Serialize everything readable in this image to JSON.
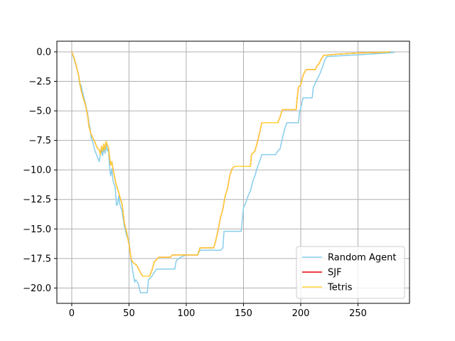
{
  "chart_data": {
    "type": "line",
    "title": "",
    "xlabel": "",
    "ylabel": "",
    "xlim": [
      -13,
      295
    ],
    "ylim": [
      -21.3,
      0.9
    ],
    "grid": true,
    "legend_position": "lower right",
    "x_ticks": [
      0,
      50,
      100,
      150,
      200,
      250
    ],
    "x_tick_labels": [
      "0",
      "50",
      "100",
      "150",
      "200",
      "250"
    ],
    "y_ticks": [
      0.0,
      -2.5,
      -5.0,
      -7.5,
      -10.0,
      -12.5,
      -15.0,
      -17.5,
      -20.0
    ],
    "y_tick_labels": [
      "0.0",
      "−2.5",
      "−5.0",
      "−7.5",
      "−10.0",
      "−12.5",
      "−15.0",
      "−17.5",
      "−20.0"
    ],
    "series": [
      {
        "name": "Random Agent",
        "color": "#87ceeb",
        "points": [
          [
            0,
            0
          ],
          [
            2,
            -0.6
          ],
          [
            4,
            -1.3
          ],
          [
            6,
            -2.0
          ],
          [
            7,
            -2.8
          ],
          [
            8,
            -2.8
          ],
          [
            10,
            -3.6
          ],
          [
            12,
            -4.4
          ],
          [
            14,
            -5.3
          ],
          [
            15,
            -6.0
          ],
          [
            16,
            -6.5
          ],
          [
            17,
            -7.3
          ],
          [
            18,
            -7.5
          ],
          [
            20,
            -8.3
          ],
          [
            22,
            -8.8
          ],
          [
            24,
            -9.3
          ],
          [
            25,
            -8.7
          ],
          [
            26,
            -8.3
          ],
          [
            27,
            -8.8
          ],
          [
            28,
            -8.0
          ],
          [
            29,
            -8.6
          ],
          [
            30,
            -7.9
          ],
          [
            31,
            -8.4
          ],
          [
            32,
            -8.2
          ],
          [
            33,
            -9.8
          ],
          [
            34,
            -10.5
          ],
          [
            35,
            -9.9
          ],
          [
            36,
            -10.9
          ],
          [
            38,
            -11.5
          ],
          [
            39,
            -13.0
          ],
          [
            40,
            -12.9
          ],
          [
            41,
            -12.2
          ],
          [
            42,
            -12.9
          ],
          [
            44,
            -13.5
          ],
          [
            46,
            -14.8
          ],
          [
            48,
            -15.6
          ],
          [
            50,
            -16.0
          ],
          [
            52,
            -17.8
          ],
          [
            54,
            -19.0
          ],
          [
            55,
            -19.5
          ],
          [
            56,
            -19.3
          ],
          [
            58,
            -19.6
          ],
          [
            60,
            -20.4
          ],
          [
            62,
            -20.4
          ],
          [
            66,
            -20.4
          ],
          [
            67,
            -19.3
          ],
          [
            70,
            -19.0
          ],
          [
            72,
            -18.7
          ],
          [
            74,
            -18.4
          ],
          [
            90,
            -18.4
          ],
          [
            91,
            -17.8
          ],
          [
            92,
            -17.6
          ],
          [
            95,
            -17.4
          ],
          [
            100,
            -17.2
          ],
          [
            110,
            -17.2
          ],
          [
            112,
            -16.8
          ],
          [
            130,
            -16.8
          ],
          [
            132,
            -16.6
          ],
          [
            133,
            -15.2
          ],
          [
            148,
            -15.2
          ],
          [
            149,
            -14.2
          ],
          [
            150,
            -13.2
          ],
          [
            152,
            -12.8
          ],
          [
            154,
            -12.2
          ],
          [
            156,
            -11.8
          ],
          [
            158,
            -11.0
          ],
          [
            160,
            -10.5
          ],
          [
            162,
            -9.8
          ],
          [
            164,
            -9.3
          ],
          [
            166,
            -8.7
          ],
          [
            168,
            -8.7
          ],
          [
            178,
            -8.7
          ],
          [
            180,
            -8.4
          ],
          [
            182,
            -8.2
          ],
          [
            184,
            -7.3
          ],
          [
            186,
            -6.5
          ],
          [
            188,
            -6.0
          ],
          [
            198,
            -6.0
          ],
          [
            199,
            -5.0
          ],
          [
            200,
            -4.8
          ],
          [
            202,
            -3.9
          ],
          [
            210,
            -3.9
          ],
          [
            211,
            -3.0
          ],
          [
            213,
            -2.6
          ],
          [
            215,
            -2.2
          ],
          [
            217,
            -1.8
          ],
          [
            219,
            -1.3
          ],
          [
            221,
            -0.7
          ],
          [
            223,
            -0.4
          ],
          [
            240,
            -0.3
          ],
          [
            260,
            -0.2
          ],
          [
            275,
            -0.1
          ],
          [
            282,
            -0.05
          ]
        ]
      },
      {
        "name": "SJF",
        "color": "#e8000b",
        "points": [
          [
            0,
            0
          ],
          [
            2,
            -0.5
          ],
          [
            4,
            -1.2
          ],
          [
            6,
            -2.0
          ],
          [
            8,
            -3.2
          ],
          [
            10,
            -3.9
          ],
          [
            12,
            -4.5
          ],
          [
            14,
            -5.5
          ],
          [
            15,
            -6.3
          ],
          [
            16,
            -6.7
          ],
          [
            17,
            -7.0
          ],
          [
            18,
            -7.2
          ],
          [
            20,
            -7.6
          ],
          [
            22,
            -8.1
          ],
          [
            24,
            -8.3
          ],
          [
            25,
            -8.7
          ],
          [
            26,
            -8.0
          ],
          [
            27,
            -8.4
          ],
          [
            28,
            -7.8
          ],
          [
            29,
            -8.3
          ],
          [
            30,
            -7.6
          ],
          [
            31,
            -7.9
          ],
          [
            32,
            -8.1
          ],
          [
            33,
            -8.9
          ],
          [
            34,
            -9.6
          ],
          [
            35,
            -9.3
          ],
          [
            36,
            -9.9
          ],
          [
            38,
            -10.9
          ],
          [
            39,
            -11.3
          ],
          [
            40,
            -11.6
          ],
          [
            41,
            -11.9
          ],
          [
            42,
            -12.3
          ],
          [
            44,
            -12.9
          ],
          [
            46,
            -14.5
          ],
          [
            48,
            -15.3
          ],
          [
            50,
            -16.3
          ],
          [
            52,
            -17.6
          ],
          [
            54,
            -17.9
          ],
          [
            56,
            -18.0
          ],
          [
            58,
            -18.3
          ],
          [
            60,
            -18.7
          ],
          [
            62,
            -19.0
          ],
          [
            68,
            -19.0
          ],
          [
            70,
            -18.5
          ],
          [
            72,
            -17.8
          ],
          [
            74,
            -17.6
          ],
          [
            76,
            -17.4
          ],
          [
            86,
            -17.4
          ],
          [
            88,
            -17.2
          ],
          [
            110,
            -17.2
          ],
          [
            112,
            -16.6
          ],
          [
            124,
            -16.6
          ],
          [
            126,
            -15.9
          ],
          [
            128,
            -15.0
          ],
          [
            130,
            -14.0
          ],
          [
            132,
            -13.3
          ],
          [
            134,
            -12.2
          ],
          [
            136,
            -11.6
          ],
          [
            138,
            -10.5
          ],
          [
            140,
            -9.9
          ],
          [
            142,
            -9.7
          ],
          [
            156,
            -9.7
          ],
          [
            157,
            -8.7
          ],
          [
            160,
            -8.4
          ],
          [
            162,
            -7.7
          ],
          [
            164,
            -6.9
          ],
          [
            166,
            -6.0
          ],
          [
            180,
            -6.0
          ],
          [
            182,
            -5.5
          ],
          [
            184,
            -4.9
          ],
          [
            196,
            -4.9
          ],
          [
            197,
            -3.8
          ],
          [
            198,
            -3.0
          ],
          [
            200,
            -2.8
          ],
          [
            202,
            -2.0
          ],
          [
            204,
            -1.6
          ],
          [
            205,
            -1.5
          ],
          [
            213,
            -1.5
          ],
          [
            214,
            -1.2
          ],
          [
            216,
            -1.0
          ],
          [
            218,
            -0.6
          ],
          [
            220,
            -0.3
          ],
          [
            232,
            -0.2
          ],
          [
            250,
            -0.1
          ],
          [
            270,
            -0.05
          ],
          [
            278,
            0
          ]
        ]
      },
      {
        "name": "Tetris",
        "color": "#ffd43a",
        "points": [
          [
            0,
            0
          ],
          [
            2,
            -0.5
          ],
          [
            4,
            -1.2
          ],
          [
            6,
            -2.0
          ],
          [
            8,
            -3.2
          ],
          [
            10,
            -3.9
          ],
          [
            12,
            -4.5
          ],
          [
            14,
            -5.5
          ],
          [
            15,
            -6.3
          ],
          [
            16,
            -6.7
          ],
          [
            17,
            -7.0
          ],
          [
            18,
            -7.2
          ],
          [
            20,
            -7.6
          ],
          [
            22,
            -8.1
          ],
          [
            24,
            -8.3
          ],
          [
            25,
            -8.7
          ],
          [
            26,
            -8.0
          ],
          [
            27,
            -8.4
          ],
          [
            28,
            -7.8
          ],
          [
            29,
            -8.3
          ],
          [
            30,
            -7.6
          ],
          [
            31,
            -7.9
          ],
          [
            32,
            -8.1
          ],
          [
            33,
            -8.9
          ],
          [
            34,
            -9.6
          ],
          [
            35,
            -9.3
          ],
          [
            36,
            -9.9
          ],
          [
            38,
            -10.9
          ],
          [
            39,
            -11.3
          ],
          [
            40,
            -11.6
          ],
          [
            41,
            -11.9
          ],
          [
            42,
            -12.3
          ],
          [
            44,
            -12.9
          ],
          [
            46,
            -14.5
          ],
          [
            48,
            -15.3
          ],
          [
            50,
            -16.3
          ],
          [
            52,
            -17.6
          ],
          [
            54,
            -17.9
          ],
          [
            56,
            -18.0
          ],
          [
            58,
            -18.3
          ],
          [
            60,
            -18.7
          ],
          [
            62,
            -19.0
          ],
          [
            68,
            -19.0
          ],
          [
            70,
            -18.5
          ],
          [
            72,
            -17.8
          ],
          [
            74,
            -17.6
          ],
          [
            76,
            -17.4
          ],
          [
            86,
            -17.4
          ],
          [
            88,
            -17.2
          ],
          [
            110,
            -17.2
          ],
          [
            112,
            -16.6
          ],
          [
            124,
            -16.6
          ],
          [
            126,
            -15.9
          ],
          [
            128,
            -15.0
          ],
          [
            130,
            -14.0
          ],
          [
            132,
            -13.3
          ],
          [
            134,
            -12.2
          ],
          [
            136,
            -11.6
          ],
          [
            138,
            -10.5
          ],
          [
            140,
            -9.9
          ],
          [
            142,
            -9.7
          ],
          [
            156,
            -9.7
          ],
          [
            157,
            -8.7
          ],
          [
            160,
            -8.4
          ],
          [
            162,
            -7.7
          ],
          [
            164,
            -6.9
          ],
          [
            166,
            -6.0
          ],
          [
            180,
            -6.0
          ],
          [
            182,
            -5.5
          ],
          [
            184,
            -4.9
          ],
          [
            196,
            -4.9
          ],
          [
            197,
            -3.8
          ],
          [
            198,
            -3.0
          ],
          [
            200,
            -2.8
          ],
          [
            202,
            -2.0
          ],
          [
            204,
            -1.6
          ],
          [
            205,
            -1.5
          ],
          [
            213,
            -1.5
          ],
          [
            214,
            -1.2
          ],
          [
            216,
            -1.0
          ],
          [
            218,
            -0.6
          ],
          [
            220,
            -0.3
          ],
          [
            232,
            -0.2
          ],
          [
            250,
            -0.1
          ],
          [
            270,
            -0.05
          ],
          [
            278,
            0
          ]
        ]
      }
    ]
  }
}
